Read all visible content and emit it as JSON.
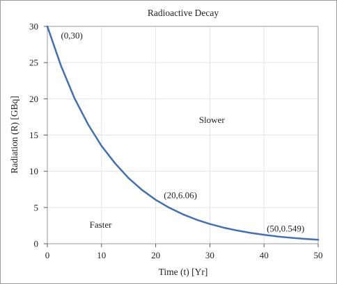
{
  "chart_data": {
    "type": "line",
    "title": "Radioactive Decay",
    "xlabel": "Time (t) [Yr]",
    "ylabel": "Radiation (R) [GBq]",
    "xlim": [
      0,
      50
    ],
    "ylim": [
      0,
      30
    ],
    "xticks": [
      0,
      10,
      20,
      30,
      40,
      50
    ],
    "yticks": [
      0,
      5,
      10,
      15,
      20,
      25,
      30
    ],
    "grid": true,
    "line_color": "#3f6fb5",
    "series": [
      {
        "x": [
          0,
          2.5,
          5,
          7.5,
          10,
          12.5,
          15,
          17.5,
          20,
          22.5,
          25,
          27.5,
          30,
          32.5,
          35,
          37.5,
          40,
          42.5,
          45,
          47.5,
          50
        ],
        "y": [
          30,
          24.6,
          20.1,
          16.5,
          13.5,
          11.1,
          9.05,
          7.41,
          6.06,
          4.97,
          4.07,
          3.33,
          2.73,
          2.23,
          1.83,
          1.5,
          1.23,
          1.0,
          0.82,
          0.67,
          0.549
        ]
      }
    ],
    "annotations": [
      {
        "text": "(0,30)",
        "x": 2.5,
        "y": 28.3
      },
      {
        "text": "(20,6.06)",
        "x": 21.5,
        "y": 6.3
      },
      {
        "text": "(50,0.549)",
        "x": 40.5,
        "y": 1.7
      },
      {
        "text": "Slower",
        "x": 28,
        "y": 16.7
      },
      {
        "text": "Faster",
        "x": 7.8,
        "y": 2.2
      }
    ]
  }
}
